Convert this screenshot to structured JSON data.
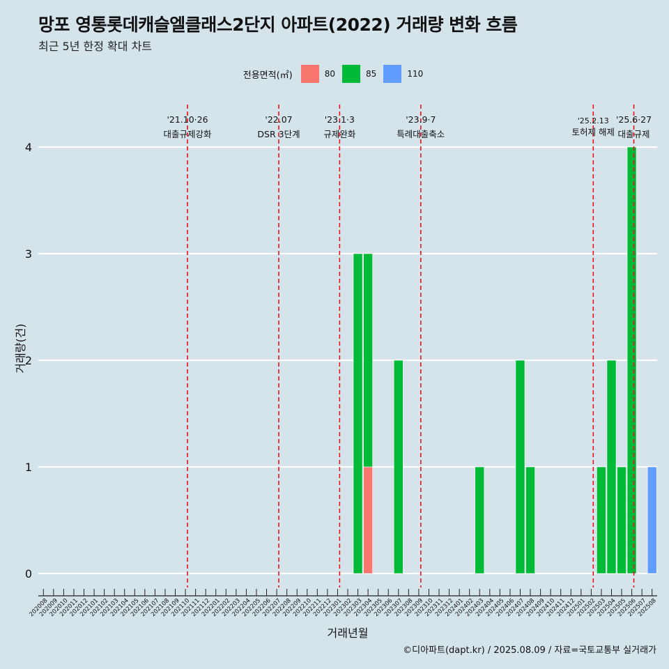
{
  "title": "망포 영통롯데캐슬엘클래스2단지 아파트(2022) 거래량 변화 흐름",
  "subtitle": "최근 5년 한정 확대 차트",
  "caption": "©디아파트(dapt.kr) / 2025.08.09 / 자료=국토교통부 실거래가",
  "legend": {
    "title": "전용면적(㎡)",
    "items": [
      {
        "label": "80",
        "color": "#f8766d"
      },
      {
        "label": "85",
        "color": "#00ba38"
      },
      {
        "label": "110",
        "color": "#619cff"
      }
    ]
  },
  "chart_data": {
    "type": "bar",
    "stacked": true,
    "xlabel": "거래년월",
    "ylabel": "거래량(건)",
    "ylim": [
      0,
      4
    ],
    "yticks": [
      0,
      1,
      2,
      3,
      4
    ],
    "categories": [
      "202008",
      "202009",
      "202010",
      "202011",
      "202012",
      "202101",
      "202102",
      "202103",
      "202104",
      "202105",
      "202106",
      "202107",
      "202108",
      "202109",
      "202110",
      "202111",
      "202112",
      "202201",
      "202202",
      "202203",
      "202204",
      "202205",
      "202206",
      "202207",
      "202208",
      "202209",
      "202210",
      "202211",
      "202212",
      "202301",
      "202302",
      "202303",
      "202304",
      "202305",
      "202306",
      "202307",
      "202308",
      "202309",
      "202310",
      "202311",
      "202312",
      "202401",
      "202402",
      "202403",
      "202404",
      "202405",
      "202406",
      "202407",
      "202408",
      "202409",
      "202410",
      "202411",
      "202412",
      "202501",
      "202502",
      "202503",
      "202504",
      "202505",
      "202506",
      "202507",
      "202508"
    ],
    "series": [
      {
        "name": "80",
        "color": "#f8766d",
        "values": [
          0,
          0,
          0,
          0,
          0,
          0,
          0,
          0,
          0,
          0,
          0,
          0,
          0,
          0,
          0,
          0,
          0,
          0,
          0,
          0,
          0,
          0,
          0,
          0,
          0,
          0,
          0,
          0,
          0,
          0,
          0,
          0,
          1,
          0,
          0,
          0,
          0,
          0,
          0,
          0,
          0,
          0,
          0,
          0,
          0,
          0,
          0,
          0,
          0,
          0,
          0,
          0,
          0,
          0,
          0,
          0,
          0,
          0,
          0,
          0,
          0
        ]
      },
      {
        "name": "85",
        "color": "#00ba38",
        "values": [
          0,
          0,
          0,
          0,
          0,
          0,
          0,
          0,
          0,
          0,
          0,
          0,
          0,
          0,
          0,
          0,
          0,
          0,
          0,
          0,
          0,
          0,
          0,
          0,
          0,
          0,
          0,
          0,
          0,
          0,
          0,
          3,
          2,
          0,
          0,
          2,
          0,
          0,
          0,
          0,
          0,
          0,
          0,
          1,
          0,
          0,
          0,
          2,
          1,
          0,
          0,
          0,
          0,
          0,
          0,
          1,
          2,
          1,
          4,
          0,
          0
        ]
      },
      {
        "name": "110",
        "color": "#619cff",
        "values": [
          0,
          0,
          0,
          0,
          0,
          0,
          0,
          0,
          0,
          0,
          0,
          0,
          0,
          0,
          0,
          0,
          0,
          0,
          0,
          0,
          0,
          0,
          0,
          0,
          0,
          0,
          0,
          0,
          0,
          0,
          0,
          0,
          0,
          0,
          0,
          0,
          0,
          0,
          0,
          0,
          0,
          0,
          0,
          0,
          0,
          0,
          0,
          0,
          0,
          0,
          0,
          0,
          0,
          0,
          0,
          0,
          0,
          0,
          0,
          0,
          1
        ]
      }
    ],
    "annotations": [
      {
        "at": 14.2,
        "date": "'21.10·26",
        "label": "대출규제강화"
      },
      {
        "at": 23.2,
        "date": "'22.07",
        "label": "DSR 3단계"
      },
      {
        "at": 29.2,
        "date": "'23.1·3",
        "label": "규제완화"
      },
      {
        "at": 37.2,
        "date": "'23.9·7",
        "label": "특례대출축소"
      },
      {
        "at": 54.2,
        "date": "'25.2.13",
        "label": "토허제 해제"
      },
      {
        "at": 58.2,
        "date": "'25.6·27",
        "label": "대출규제"
      }
    ]
  }
}
